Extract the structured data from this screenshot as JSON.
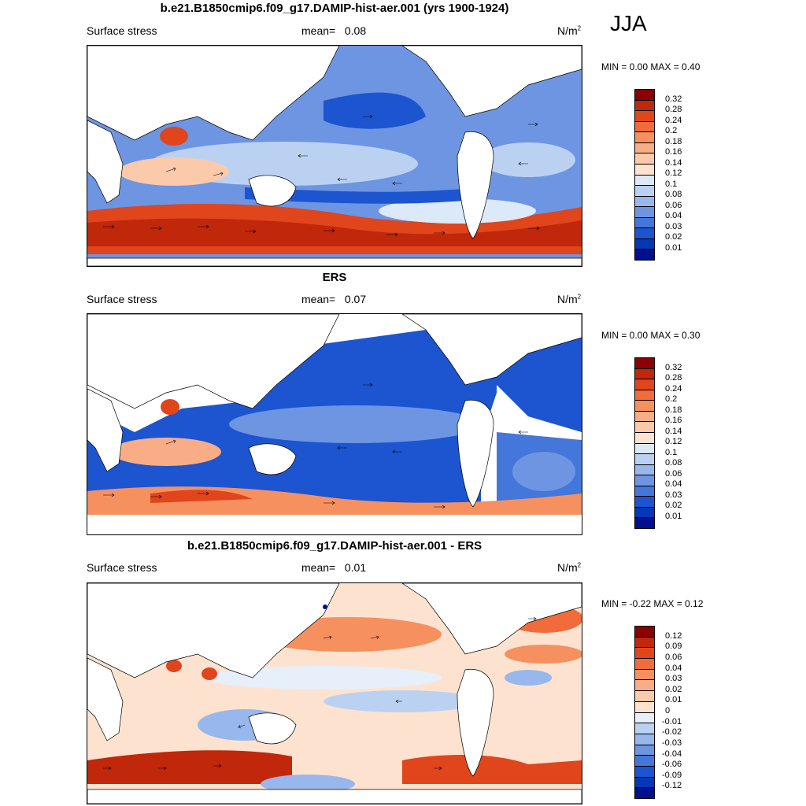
{
  "season": "JJA",
  "panels": [
    {
      "title": "b.e21.B1850cmip6.f09_g17.DAMIP-hist-aer.001 (yrs 1900-1924)",
      "left_label": "Surface stress",
      "mean_label": "mean=",
      "mean_value": "0.08",
      "units": "N/m",
      "units_sup": "2",
      "minmax": "MIN =   0.00 MAX =   0.40",
      "colorbar_levels": [
        "0.32",
        "0.28",
        "0.24",
        "0.2",
        "0.18",
        "0.16",
        "0.14",
        "0.12",
        "0.1",
        "0.08",
        "0.06",
        "0.04",
        "0.03",
        "0.02",
        "0.01"
      ],
      "colorbar_colors": [
        "#8b0000",
        "#c1270a",
        "#e0451c",
        "#f26b3b",
        "#f7905f",
        "#f9ad86",
        "#fbcaab",
        "#fde3cf",
        "#dbe9f8",
        "#bbd1f2",
        "#98b7ec",
        "#6d95e2",
        "#4576d9",
        "#1c55cf",
        "#0637b8",
        "#00108e"
      ]
    },
    {
      "title": "ERS",
      "left_label": "Surface stress",
      "mean_label": "mean=",
      "mean_value": "0.07",
      "units": "N/m",
      "units_sup": "2",
      "minmax": "MIN =   0.00 MAX =   0.30",
      "colorbar_levels": [
        "0.32",
        "0.28",
        "0.24",
        "0.2",
        "0.18",
        "0.16",
        "0.14",
        "0.12",
        "0.1",
        "0.08",
        "0.06",
        "0.04",
        "0.03",
        "0.02",
        "0.01"
      ],
      "colorbar_colors": [
        "#8b0000",
        "#c1270a",
        "#e0451c",
        "#f26b3b",
        "#f7905f",
        "#f9ad86",
        "#fbcaab",
        "#fde3cf",
        "#dbe9f8",
        "#bbd1f2",
        "#98b7ec",
        "#6d95e2",
        "#4576d9",
        "#1c55cf",
        "#0637b8",
        "#00108e"
      ]
    },
    {
      "title": "b.e21.B1850cmip6.f09_g17.DAMIP-hist-aer.001 - ERS",
      "left_label": "Surface stress",
      "mean_label": "mean=",
      "mean_value": "0.01",
      "units": "N/m",
      "units_sup": "2",
      "minmax": "MIN =  -0.22 MAX =   0.12",
      "colorbar_levels": [
        "0.12",
        "0.09",
        "0.06",
        "0.04",
        "0.03",
        "0.02",
        "0.01",
        "0",
        "-0.01",
        "-0.02",
        "-0.03",
        "-0.04",
        "-0.06",
        "-0.09",
        "-0.12"
      ],
      "colorbar_colors": [
        "#8b0000",
        "#c1270a",
        "#e0451c",
        "#f26b3b",
        "#f7905f",
        "#f9ad86",
        "#fbcaab",
        "#fde3cf",
        "#e7effa",
        "#bbd1f2",
        "#98b7ec",
        "#6d95e2",
        "#4576d9",
        "#1c55cf",
        "#0637b8",
        "#00108e"
      ]
    }
  ],
  "chart_data": [
    {
      "type": "heatmap",
      "title": "b.e21.B1850cmip6.f09_g17.DAMIP-hist-aer.001 (yrs 1900-1924)",
      "variable": "Surface stress",
      "units": "N/m2",
      "season": "JJA",
      "mean": 0.08,
      "min": 0.0,
      "max": 0.4,
      "colorbar_levels": [
        0.32,
        0.28,
        0.24,
        0.2,
        0.18,
        0.16,
        0.14,
        0.12,
        0.1,
        0.08,
        0.06,
        0.04,
        0.03,
        0.02,
        0.01
      ]
    },
    {
      "type": "heatmap",
      "title": "ERS",
      "variable": "Surface stress",
      "units": "N/m2",
      "season": "JJA",
      "mean": 0.07,
      "min": 0.0,
      "max": 0.3,
      "colorbar_levels": [
        0.32,
        0.28,
        0.24,
        0.2,
        0.18,
        0.16,
        0.14,
        0.12,
        0.1,
        0.08,
        0.06,
        0.04,
        0.03,
        0.02,
        0.01
      ]
    },
    {
      "type": "heatmap",
      "title": "b.e21.B1850cmip6.f09_g17.DAMIP-hist-aer.001 - ERS",
      "variable": "Surface stress",
      "units": "N/m2",
      "season": "JJA",
      "mean": 0.01,
      "min": -0.22,
      "max": 0.12,
      "colorbar_levels": [
        0.12,
        0.09,
        0.06,
        0.04,
        0.03,
        0.02,
        0.01,
        0,
        -0.01,
        -0.02,
        -0.03,
        -0.04,
        -0.06,
        -0.09,
        -0.12
      ]
    }
  ]
}
